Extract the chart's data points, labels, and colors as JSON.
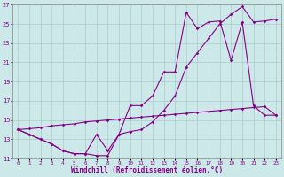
{
  "xlabel": "Windchill (Refroidissement éolien,°C)",
  "bg_color": "#cce8e8",
  "grid_color": "#aacccc",
  "line_color": "#880088",
  "xlim": [
    -0.5,
    23.5
  ],
  "ylim": [
    11,
    27
  ],
  "xticks": [
    0,
    1,
    2,
    3,
    4,
    5,
    6,
    7,
    8,
    9,
    10,
    11,
    12,
    13,
    14,
    15,
    16,
    17,
    18,
    19,
    20,
    21,
    22,
    23
  ],
  "yticks": [
    11,
    13,
    15,
    17,
    19,
    21,
    23,
    25,
    27
  ],
  "series1_x": [
    0,
    1,
    2,
    3,
    4,
    5,
    6,
    7,
    8,
    9,
    10,
    11,
    12,
    13,
    14,
    15,
    16,
    17,
    18,
    19,
    20,
    21,
    22,
    23
  ],
  "series1_y": [
    14.0,
    13.5,
    13.0,
    12.5,
    11.8,
    11.5,
    11.5,
    11.3,
    11.3,
    13.5,
    13.8,
    14.0,
    14.8,
    16.0,
    17.5,
    20.5,
    22.0,
    23.5,
    25.0,
    26.0,
    26.8,
    25.2,
    25.3,
    25.5
  ],
  "series2_x": [
    0,
    1,
    2,
    3,
    4,
    5,
    6,
    7,
    8,
    9,
    10,
    11,
    12,
    13,
    14,
    15,
    16,
    17,
    18,
    19,
    20,
    21,
    22,
    23
  ],
  "series2_y": [
    14.0,
    14.1,
    14.2,
    14.4,
    14.5,
    14.6,
    14.8,
    14.9,
    15.0,
    15.1,
    15.2,
    15.3,
    15.4,
    15.5,
    15.6,
    15.7,
    15.8,
    15.9,
    16.0,
    16.1,
    16.2,
    16.3,
    16.4,
    15.5
  ],
  "series3_x": [
    0,
    1,
    2,
    3,
    4,
    5,
    6,
    7,
    8,
    9,
    10,
    11,
    12,
    13,
    14,
    15,
    16,
    17,
    18,
    19,
    20,
    21,
    22,
    23
  ],
  "series3_y": [
    14.0,
    13.5,
    13.0,
    12.5,
    11.8,
    11.5,
    11.5,
    13.5,
    11.8,
    13.5,
    16.5,
    16.5,
    17.5,
    20.0,
    20.0,
    26.2,
    24.5,
    25.2,
    25.3,
    21.2,
    25.2,
    16.5,
    15.5,
    15.5
  ]
}
